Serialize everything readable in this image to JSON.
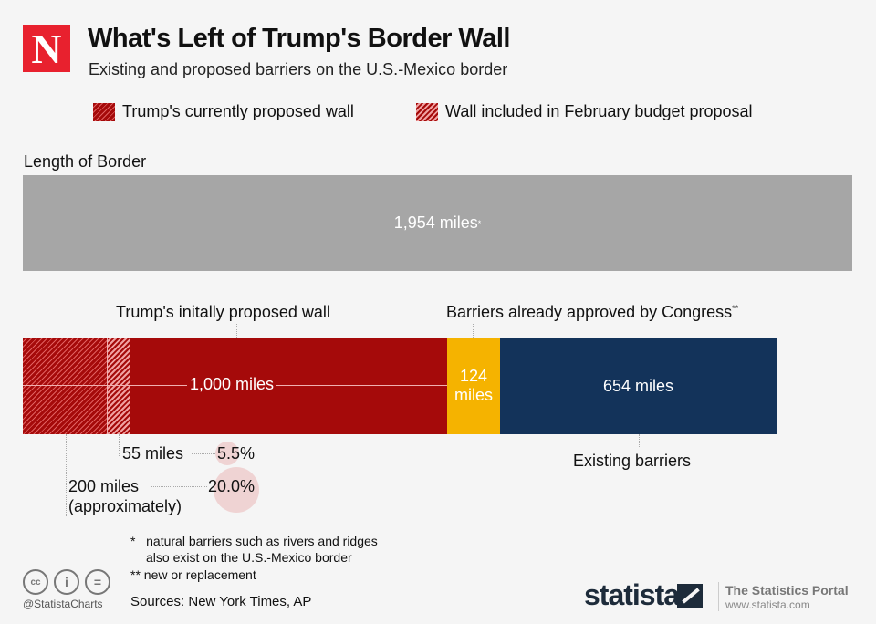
{
  "header": {
    "logo": "N",
    "title": "What's Left of Trump's Border Wall",
    "subtitle": "Existing and proposed barriers on the U.S.-Mexico border"
  },
  "legend": [
    {
      "label": "Trump's currently proposed wall"
    },
    {
      "label": "Wall included in February budget proposal"
    }
  ],
  "chart_data": {
    "type": "bar",
    "title": "What's Left of Trump's Border Wall",
    "subtitle": "Existing and proposed barriers on the U.S.-Mexico border",
    "border": {
      "label": "Length of Border",
      "value": 1954,
      "text": "1,954 miles",
      "mark": "*"
    },
    "segments": [
      {
        "name": "Trump's currently proposed wall",
        "value": 200,
        "text": "200 miles",
        "note": "(approximately)",
        "pct": "20.0%",
        "color": "#a50a0a"
      },
      {
        "name": "Wall included in February budget proposal",
        "value": 55,
        "text": "55 miles",
        "pct": "5.5%",
        "color": "#a50a0a"
      },
      {
        "name": "Trump's initally proposed wall",
        "value": 1000,
        "text": "1,000 miles",
        "color": "#a50a0a"
      },
      {
        "name": "Barriers already approved by Congress",
        "value": 124,
        "text": "124 miles",
        "mark": "**",
        "color": "#f5b300"
      },
      {
        "name": "Existing barriers",
        "value": 654,
        "text": "654 miles",
        "color": "#13335a"
      }
    ]
  },
  "footnotes": [
    "*   natural barriers such as rivers and ridges",
    "also exist on the U.S.-Mexico border",
    "** new or replacement"
  ],
  "sources": "Sources: New York Times, AP",
  "footer": {
    "handle": "@StatistaCharts",
    "brand": "statista",
    "portal": "The Statistics Portal",
    "url": "www.statista.com"
  }
}
